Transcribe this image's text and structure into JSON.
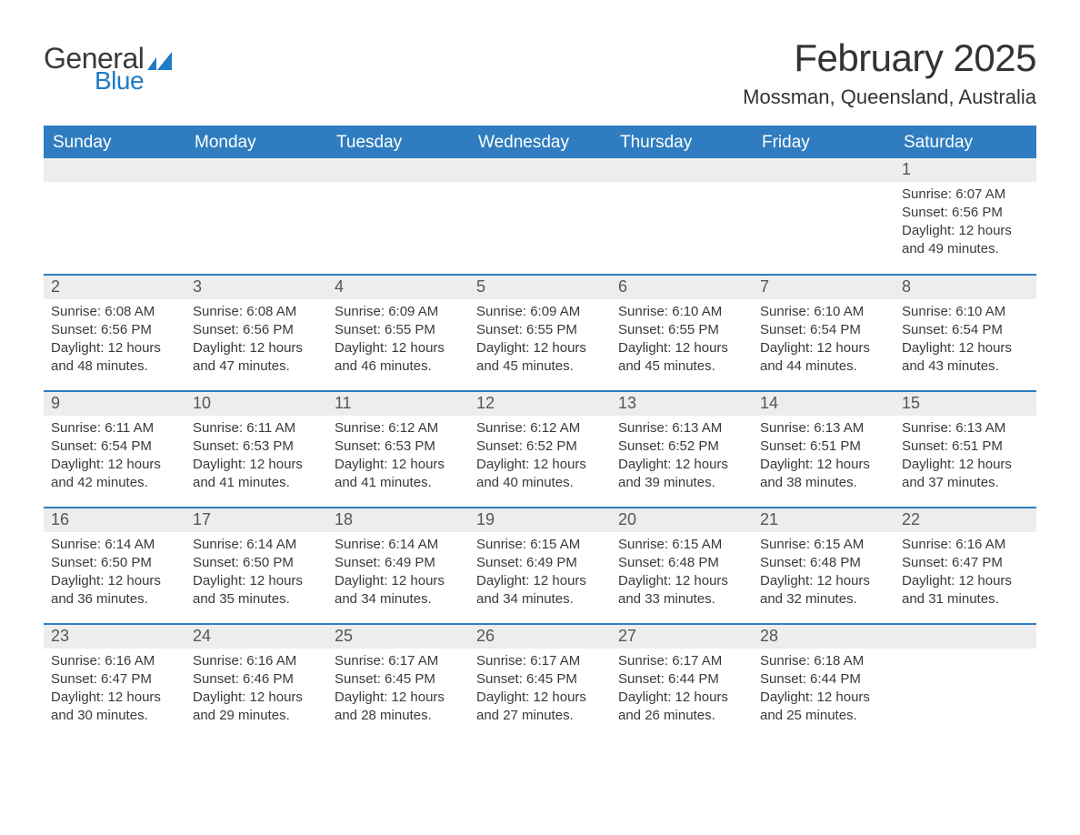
{
  "brand": {
    "word1": "General",
    "word2": "Blue",
    "accent_color": "#1f7bc4",
    "text_color": "#3a3a3a"
  },
  "title": "February 2025",
  "location": "Mossman, Queensland, Australia",
  "colors": {
    "header_bg": "#2f7dc0",
    "header_text": "#ffffff",
    "day_head_bg": "#ededed",
    "day_head_text": "#555555",
    "body_text": "#3a3a3a",
    "rule": "#2f7dc0",
    "page_bg": "#ffffff"
  },
  "weekdays": [
    "Sunday",
    "Monday",
    "Tuesday",
    "Wednesday",
    "Thursday",
    "Friday",
    "Saturday"
  ],
  "weeks": [
    [
      null,
      null,
      null,
      null,
      null,
      null,
      {
        "n": "1",
        "sunrise": "Sunrise: 6:07 AM",
        "sunset": "Sunset: 6:56 PM",
        "day1": "Daylight: 12 hours",
        "day2": "and 49 minutes."
      }
    ],
    [
      {
        "n": "2",
        "sunrise": "Sunrise: 6:08 AM",
        "sunset": "Sunset: 6:56 PM",
        "day1": "Daylight: 12 hours",
        "day2": "and 48 minutes."
      },
      {
        "n": "3",
        "sunrise": "Sunrise: 6:08 AM",
        "sunset": "Sunset: 6:56 PM",
        "day1": "Daylight: 12 hours",
        "day2": "and 47 minutes."
      },
      {
        "n": "4",
        "sunrise": "Sunrise: 6:09 AM",
        "sunset": "Sunset: 6:55 PM",
        "day1": "Daylight: 12 hours",
        "day2": "and 46 minutes."
      },
      {
        "n": "5",
        "sunrise": "Sunrise: 6:09 AM",
        "sunset": "Sunset: 6:55 PM",
        "day1": "Daylight: 12 hours",
        "day2": "and 45 minutes."
      },
      {
        "n": "6",
        "sunrise": "Sunrise: 6:10 AM",
        "sunset": "Sunset: 6:55 PM",
        "day1": "Daylight: 12 hours",
        "day2": "and 45 minutes."
      },
      {
        "n": "7",
        "sunrise": "Sunrise: 6:10 AM",
        "sunset": "Sunset: 6:54 PM",
        "day1": "Daylight: 12 hours",
        "day2": "and 44 minutes."
      },
      {
        "n": "8",
        "sunrise": "Sunrise: 6:10 AM",
        "sunset": "Sunset: 6:54 PM",
        "day1": "Daylight: 12 hours",
        "day2": "and 43 minutes."
      }
    ],
    [
      {
        "n": "9",
        "sunrise": "Sunrise: 6:11 AM",
        "sunset": "Sunset: 6:54 PM",
        "day1": "Daylight: 12 hours",
        "day2": "and 42 minutes."
      },
      {
        "n": "10",
        "sunrise": "Sunrise: 6:11 AM",
        "sunset": "Sunset: 6:53 PM",
        "day1": "Daylight: 12 hours",
        "day2": "and 41 minutes."
      },
      {
        "n": "11",
        "sunrise": "Sunrise: 6:12 AM",
        "sunset": "Sunset: 6:53 PM",
        "day1": "Daylight: 12 hours",
        "day2": "and 41 minutes."
      },
      {
        "n": "12",
        "sunrise": "Sunrise: 6:12 AM",
        "sunset": "Sunset: 6:52 PM",
        "day1": "Daylight: 12 hours",
        "day2": "and 40 minutes."
      },
      {
        "n": "13",
        "sunrise": "Sunrise: 6:13 AM",
        "sunset": "Sunset: 6:52 PM",
        "day1": "Daylight: 12 hours",
        "day2": "and 39 minutes."
      },
      {
        "n": "14",
        "sunrise": "Sunrise: 6:13 AM",
        "sunset": "Sunset: 6:51 PM",
        "day1": "Daylight: 12 hours",
        "day2": "and 38 minutes."
      },
      {
        "n": "15",
        "sunrise": "Sunrise: 6:13 AM",
        "sunset": "Sunset: 6:51 PM",
        "day1": "Daylight: 12 hours",
        "day2": "and 37 minutes."
      }
    ],
    [
      {
        "n": "16",
        "sunrise": "Sunrise: 6:14 AM",
        "sunset": "Sunset: 6:50 PM",
        "day1": "Daylight: 12 hours",
        "day2": "and 36 minutes."
      },
      {
        "n": "17",
        "sunrise": "Sunrise: 6:14 AM",
        "sunset": "Sunset: 6:50 PM",
        "day1": "Daylight: 12 hours",
        "day2": "and 35 minutes."
      },
      {
        "n": "18",
        "sunrise": "Sunrise: 6:14 AM",
        "sunset": "Sunset: 6:49 PM",
        "day1": "Daylight: 12 hours",
        "day2": "and 34 minutes."
      },
      {
        "n": "19",
        "sunrise": "Sunrise: 6:15 AM",
        "sunset": "Sunset: 6:49 PM",
        "day1": "Daylight: 12 hours",
        "day2": "and 34 minutes."
      },
      {
        "n": "20",
        "sunrise": "Sunrise: 6:15 AM",
        "sunset": "Sunset: 6:48 PM",
        "day1": "Daylight: 12 hours",
        "day2": "and 33 minutes."
      },
      {
        "n": "21",
        "sunrise": "Sunrise: 6:15 AM",
        "sunset": "Sunset: 6:48 PM",
        "day1": "Daylight: 12 hours",
        "day2": "and 32 minutes."
      },
      {
        "n": "22",
        "sunrise": "Sunrise: 6:16 AM",
        "sunset": "Sunset: 6:47 PM",
        "day1": "Daylight: 12 hours",
        "day2": "and 31 minutes."
      }
    ],
    [
      {
        "n": "23",
        "sunrise": "Sunrise: 6:16 AM",
        "sunset": "Sunset: 6:47 PM",
        "day1": "Daylight: 12 hours",
        "day2": "and 30 minutes."
      },
      {
        "n": "24",
        "sunrise": "Sunrise: 6:16 AM",
        "sunset": "Sunset: 6:46 PM",
        "day1": "Daylight: 12 hours",
        "day2": "and 29 minutes."
      },
      {
        "n": "25",
        "sunrise": "Sunrise: 6:17 AM",
        "sunset": "Sunset: 6:45 PM",
        "day1": "Daylight: 12 hours",
        "day2": "and 28 minutes."
      },
      {
        "n": "26",
        "sunrise": "Sunrise: 6:17 AM",
        "sunset": "Sunset: 6:45 PM",
        "day1": "Daylight: 12 hours",
        "day2": "and 27 minutes."
      },
      {
        "n": "27",
        "sunrise": "Sunrise: 6:17 AM",
        "sunset": "Sunset: 6:44 PM",
        "day1": "Daylight: 12 hours",
        "day2": "and 26 minutes."
      },
      {
        "n": "28",
        "sunrise": "Sunrise: 6:18 AM",
        "sunset": "Sunset: 6:44 PM",
        "day1": "Daylight: 12 hours",
        "day2": "and 25 minutes."
      },
      null
    ]
  ]
}
